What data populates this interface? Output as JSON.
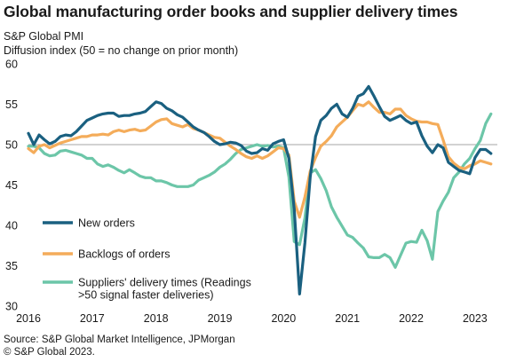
{
  "title": "Global manufacturing order books and supplier delivery times",
  "subtitle": "S&P Global PMI",
  "ylabel": "Diffusion index (50 = no change on prior month)",
  "source": "Source: S&P Global Market Intelligence, JPMorgan",
  "copyright": "© S&P Global 2023.",
  "colors": {
    "new_orders": "#1a6080",
    "backlogs": "#f4ac5a",
    "delivery": "#6cc6a8",
    "refline": "#a6a6a6"
  },
  "chart_data": {
    "type": "line",
    "xlim": [
      2016,
      2023.35
    ],
    "ylim": [
      30,
      60
    ],
    "x_ticks": [
      "2016",
      "2017",
      "2018",
      "2019",
      "2020",
      "2021",
      "2022",
      "2023"
    ],
    "y_ticks": [
      "30",
      "35",
      "40",
      "45",
      "50",
      "55",
      "60"
    ],
    "reference_line": 50,
    "grid": false,
    "legend": "lower-left",
    "series": [
      {
        "name": "New orders",
        "color": "#1a6080",
        "x": [
          2016.0,
          2016.083,
          2016.167,
          2016.25,
          2016.333,
          2016.417,
          2016.5,
          2016.583,
          2016.667,
          2016.75,
          2016.833,
          2016.917,
          2017.0,
          2017.083,
          2017.167,
          2017.25,
          2017.333,
          2017.417,
          2017.5,
          2017.583,
          2017.667,
          2017.75,
          2017.833,
          2017.917,
          2018.0,
          2018.083,
          2018.167,
          2018.25,
          2018.333,
          2018.417,
          2018.5,
          2018.583,
          2018.667,
          2018.75,
          2018.833,
          2018.917,
          2019.0,
          2019.083,
          2019.167,
          2019.25,
          2019.333,
          2019.417,
          2019.5,
          2019.583,
          2019.667,
          2019.75,
          2019.833,
          2019.917,
          2020.0,
          2020.083,
          2020.167,
          2020.25,
          2020.333,
          2020.417,
          2020.5,
          2020.583,
          2020.667,
          2020.75,
          2020.833,
          2020.917,
          2021.0,
          2021.083,
          2021.167,
          2021.25,
          2021.333,
          2021.417,
          2021.5,
          2021.583,
          2021.667,
          2021.75,
          2021.833,
          2021.917,
          2022.0,
          2022.083,
          2022.167,
          2022.25,
          2022.333,
          2022.417,
          2022.5,
          2022.583,
          2022.667,
          2022.75,
          2022.833,
          2022.917,
          2023.0,
          2023.083,
          2023.167,
          2023.25
        ],
        "y": [
          51.4,
          50.0,
          51.2,
          50.6,
          50.1,
          50.4,
          51.0,
          51.2,
          51.1,
          51.6,
          52.3,
          53.0,
          53.3,
          53.6,
          53.8,
          53.9,
          53.9,
          53.5,
          53.6,
          53.6,
          53.8,
          53.9,
          54.1,
          54.7,
          55.3,
          55.1,
          54.5,
          54.2,
          53.7,
          53.4,
          52.8,
          52.2,
          51.8,
          51.5,
          51.0,
          50.4,
          50.0,
          50.1,
          50.3,
          50.2,
          49.9,
          49.2,
          48.9,
          49.0,
          49.5,
          49.3,
          50.1,
          50.4,
          50.6,
          48.3,
          42.0,
          31.5,
          37.8,
          46.0,
          51.0,
          53.0,
          53.6,
          54.5,
          55.0,
          53.8,
          53.4,
          54.5,
          56.0,
          56.3,
          57.2,
          56.0,
          54.7,
          53.5,
          53.0,
          53.3,
          53.6,
          53.0,
          52.6,
          52.8,
          51.1,
          49.8,
          49.0,
          50.0,
          49.6,
          47.8,
          47.3,
          46.8,
          46.6,
          46.4,
          48.4,
          49.4,
          49.4,
          48.9
        ]
      },
      {
        "name": "Backlogs of orders",
        "color": "#f4ac5a",
        "x": [
          2016.0,
          2016.083,
          2016.167,
          2016.25,
          2016.333,
          2016.417,
          2016.5,
          2016.583,
          2016.667,
          2016.75,
          2016.833,
          2016.917,
          2017.0,
          2017.083,
          2017.167,
          2017.25,
          2017.333,
          2017.417,
          2017.5,
          2017.583,
          2017.667,
          2017.75,
          2017.833,
          2017.917,
          2018.0,
          2018.083,
          2018.167,
          2018.25,
          2018.333,
          2018.417,
          2018.5,
          2018.583,
          2018.667,
          2018.75,
          2018.833,
          2018.917,
          2019.0,
          2019.083,
          2019.167,
          2019.25,
          2019.333,
          2019.417,
          2019.5,
          2019.583,
          2019.667,
          2019.75,
          2019.833,
          2019.917,
          2020.0,
          2020.083,
          2020.167,
          2020.25,
          2020.333,
          2020.417,
          2020.5,
          2020.583,
          2020.667,
          2020.75,
          2020.833,
          2020.917,
          2021.0,
          2021.083,
          2021.167,
          2021.25,
          2021.333,
          2021.417,
          2021.5,
          2021.583,
          2021.667,
          2021.75,
          2021.833,
          2021.917,
          2022.0,
          2022.083,
          2022.167,
          2022.25,
          2022.333,
          2022.417,
          2022.5,
          2022.583,
          2022.667,
          2022.75,
          2022.833,
          2022.917,
          2023.0,
          2023.083,
          2023.167,
          2023.25
        ],
        "y": [
          49.5,
          49.0,
          49.8,
          50.0,
          49.6,
          49.9,
          50.2,
          50.4,
          50.6,
          50.8,
          51.0,
          51.0,
          51.2,
          51.2,
          51.3,
          51.2,
          51.6,
          51.8,
          51.6,
          51.8,
          51.9,
          51.7,
          51.8,
          52.3,
          52.8,
          53.1,
          53.2,
          52.6,
          52.4,
          52.2,
          52.5,
          52.0,
          51.8,
          51.5,
          51.2,
          50.9,
          50.8,
          50.3,
          49.8,
          49.4,
          48.9,
          48.5,
          48.3,
          48.6,
          48.3,
          48.6,
          49.1,
          49.6,
          49.5,
          48.7,
          43.0,
          41.0,
          43.5,
          46.7,
          48.4,
          49.8,
          50.4,
          51.1,
          52.2,
          52.8,
          53.4,
          54.2,
          55.0,
          54.8,
          55.3,
          54.6,
          54.0,
          54.0,
          53.8,
          54.4,
          54.4,
          53.6,
          53.2,
          52.9,
          52.8,
          52.8,
          52.6,
          52.5,
          50.6,
          48.5,
          47.7,
          47.2,
          47.0,
          47.4,
          47.6,
          48.0,
          47.8,
          47.6
        ]
      },
      {
        "name": "Suppliers' delivery times (Readings >50 signal faster deliveries)",
        "color": "#6cc6a8",
        "x": [
          2016.0,
          2016.083,
          2016.167,
          2016.25,
          2016.333,
          2016.417,
          2016.5,
          2016.583,
          2016.667,
          2016.75,
          2016.833,
          2016.917,
          2017.0,
          2017.083,
          2017.167,
          2017.25,
          2017.333,
          2017.417,
          2017.5,
          2017.583,
          2017.667,
          2017.75,
          2017.833,
          2017.917,
          2018.0,
          2018.083,
          2018.167,
          2018.25,
          2018.333,
          2018.417,
          2018.5,
          2018.583,
          2018.667,
          2018.75,
          2018.833,
          2018.917,
          2019.0,
          2019.083,
          2019.167,
          2019.25,
          2019.333,
          2019.417,
          2019.5,
          2019.583,
          2019.667,
          2019.75,
          2019.833,
          2019.917,
          2020.0,
          2020.083,
          2020.167,
          2020.25,
          2020.333,
          2020.417,
          2020.5,
          2020.583,
          2020.667,
          2020.75,
          2020.833,
          2020.917,
          2021.0,
          2021.083,
          2021.167,
          2021.25,
          2021.333,
          2021.417,
          2021.5,
          2021.583,
          2021.667,
          2021.75,
          2021.833,
          2021.917,
          2022.0,
          2022.083,
          2022.167,
          2022.25,
          2022.333,
          2022.417,
          2022.5,
          2022.583,
          2022.667,
          2022.75,
          2022.833,
          2022.917,
          2023.0,
          2023.083,
          2023.167,
          2023.25
        ],
        "y": [
          49.8,
          49.8,
          49.6,
          48.9,
          48.6,
          48.7,
          49.2,
          49.3,
          49.1,
          48.9,
          48.7,
          48.3,
          48.3,
          47.6,
          47.3,
          47.5,
          47.2,
          46.8,
          46.5,
          46.9,
          46.5,
          46.1,
          45.9,
          45.9,
          45.5,
          45.5,
          45.3,
          45.0,
          44.8,
          44.8,
          44.8,
          45.0,
          45.6,
          45.9,
          46.2,
          46.6,
          47.2,
          47.6,
          48.2,
          48.9,
          49.4,
          49.6,
          49.8,
          50.0,
          49.8,
          49.9,
          49.7,
          49.8,
          49.6,
          46.0,
          38.0,
          37.6,
          40.9,
          46.5,
          46.9,
          45.8,
          44.3,
          42.3,
          41.0,
          39.9,
          38.8,
          38.5,
          37.8,
          37.2,
          36.1,
          36.0,
          36.0,
          36.4,
          36.0,
          34.8,
          36.3,
          37.8,
          38.0,
          37.9,
          39.4,
          38.1,
          35.8,
          41.7,
          43.0,
          44.1,
          45.9,
          46.6,
          47.6,
          48.3,
          49.5,
          50.5,
          52.6,
          53.8
        ]
      }
    ]
  }
}
